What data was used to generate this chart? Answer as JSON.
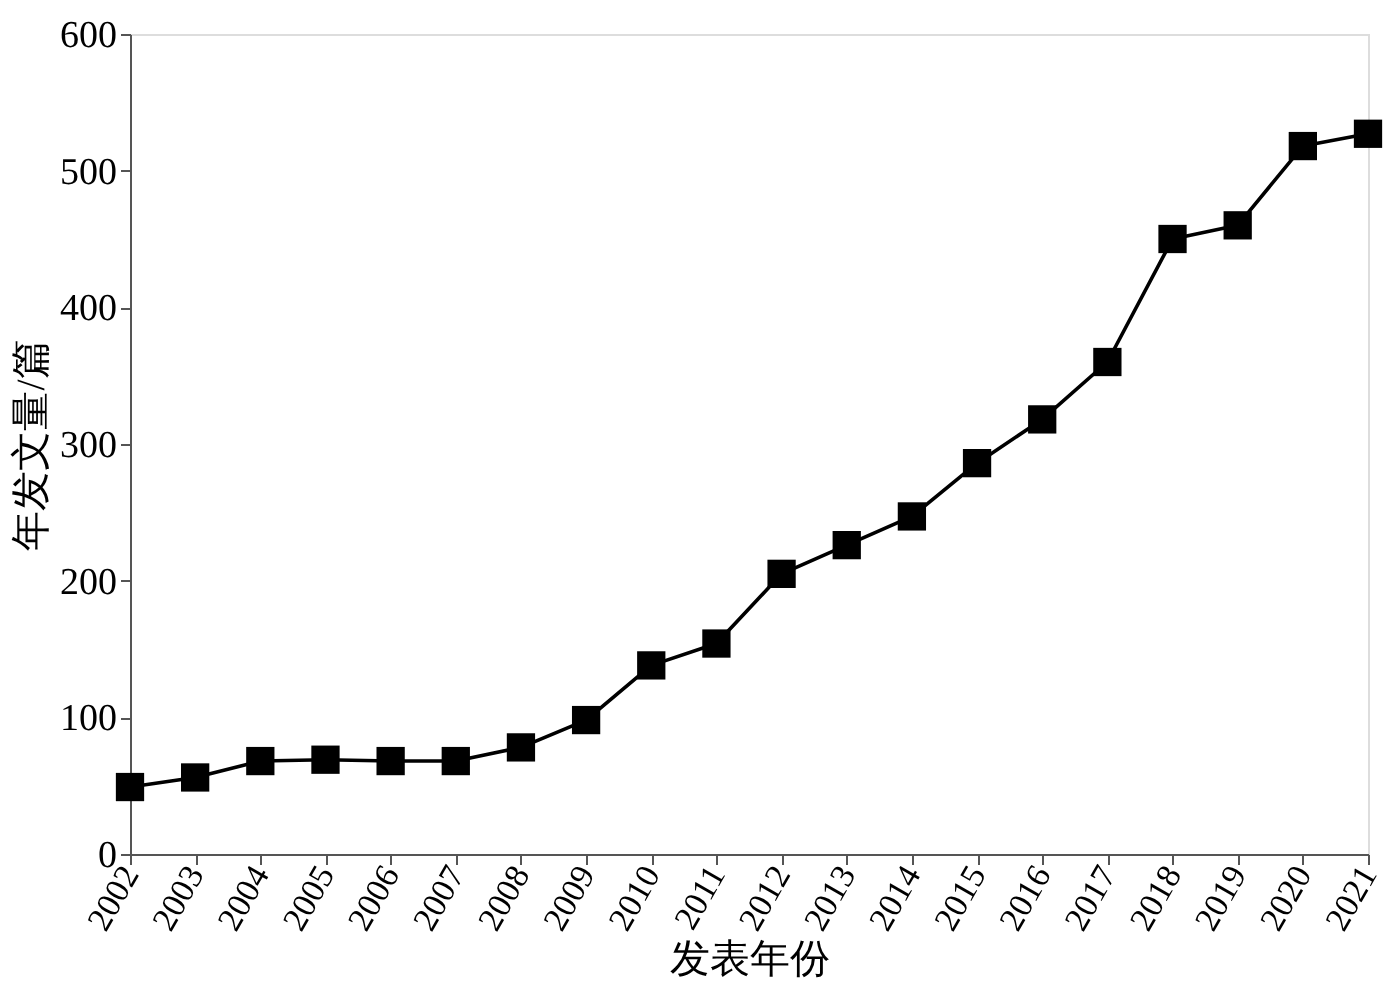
{
  "chart_data": {
    "type": "line",
    "xlabel": "发表年份",
    "ylabel": "年发文量/篇",
    "categories": [
      "2002",
      "2003",
      "2004",
      "2005",
      "2006",
      "2007",
      "2008",
      "2009",
      "2010",
      "2011",
      "2012",
      "2013",
      "2014",
      "2015",
      "2016",
      "2017",
      "2018",
      "2019",
      "2020",
      "2021"
    ],
    "series": [
      {
        "color": "#000000",
        "values": [
          49,
          56,
          68,
          69,
          68,
          68,
          78,
          98,
          138,
          154,
          205,
          226,
          247,
          286,
          318,
          360,
          450,
          460,
          518,
          527
        ]
      }
    ],
    "ylim": [
      0,
      600
    ],
    "yticks": [
      0,
      100,
      200,
      300,
      400,
      500,
      600
    ],
    "grid": false,
    "marker": "square",
    "line_style": "solid"
  }
}
